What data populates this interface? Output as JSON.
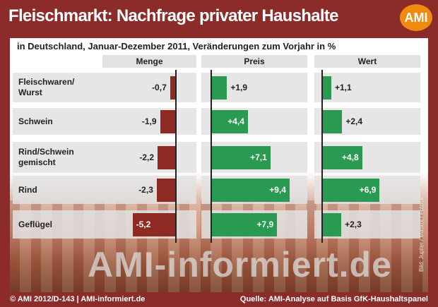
{
  "header": {
    "title": "Fleischmarkt: Nachfrage privater Haushalte",
    "logo": "AMI"
  },
  "subtitle": "in Deutschland, Januar-Dezember 2011, Veränderungen zum Vorjahr in %",
  "watermark": "AMI-informiert.de",
  "photo_credit": "Bild: Jupiter / Maskot / Fotolia",
  "footer": {
    "left": "© AMI 2012/D-143 | AMI-informiert.de",
    "right": "Quelle: AMI-Analyse auf Basis GfK-Haushaltspanel"
  },
  "colors": {
    "frame": "#8c2c2a",
    "negative": "#8e2a24",
    "positive": "#2a9a52",
    "logo": "#f08a10"
  },
  "chart_data": {
    "type": "bar",
    "title": "Fleischmarkt: Nachfrage privater Haushalte",
    "subtitle": "in Deutschland, Januar-Dezember 2011, Veränderungen zum Vorjahr in %",
    "categories": [
      "Fleischwaren/ Wurst",
      "Schwein",
      "Rind/Schwein gemischt",
      "Rind",
      "Geflügel"
    ],
    "series": [
      {
        "name": "Menge",
        "values": [
          -0.7,
          -1.9,
          -2.2,
          -2.3,
          -5.2
        ],
        "labels": [
          "-0,7",
          "-1,9",
          "-2,2",
          "-2,3",
          "-5,2"
        ]
      },
      {
        "name": "Preis",
        "values": [
          1.9,
          4.4,
          7.1,
          9.4,
          7.9
        ],
        "labels": [
          "+1,9",
          "+4,4",
          "+7,1",
          "+9,4",
          "+7,9"
        ]
      },
      {
        "name": "Wert",
        "values": [
          1.1,
          2.4,
          4.8,
          6.9,
          2.3
        ],
        "labels": [
          "+1,1",
          "+2,4",
          "+4,8",
          "+6,9",
          "+2,3"
        ]
      }
    ]
  }
}
